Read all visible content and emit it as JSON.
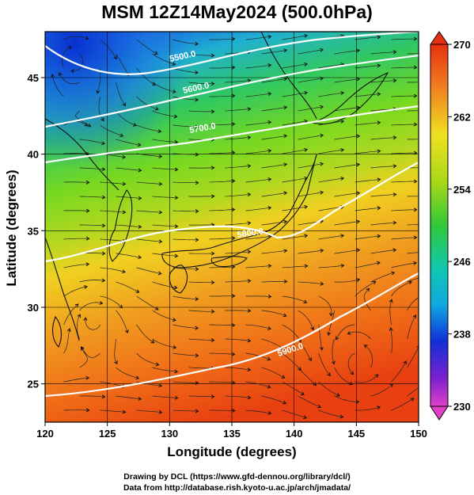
{
  "title": "MSM 12Z14May2024 (500.0hPa)",
  "map": {
    "xlabel": "Longitude (degrees)",
    "ylabel": "Latitude  (degrees)",
    "lon_range": [
      120,
      150
    ],
    "lat_range": [
      22.5,
      48
    ],
    "lon_ticks": [
      "120",
      "125",
      "130",
      "135",
      "140",
      "145",
      "150"
    ],
    "lat_ticks": [
      "25",
      "30",
      "35",
      "40",
      "45"
    ],
    "grid": true,
    "field": "temperature",
    "overlay": "streamlines"
  },
  "colorbar": {
    "ticks": [
      "270",
      "262",
      "254",
      "246",
      "238",
      "230"
    ],
    "min": 230,
    "max": 270,
    "colors": [
      "#e040c8",
      "#7a20d0",
      "#1030d8",
      "#10a8e0",
      "#20c880",
      "#30c838",
      "#a8d818",
      "#f0e020",
      "#f08020",
      "#e83010"
    ]
  },
  "contours": [
    {
      "label": "5500.0",
      "lat": 46
    },
    {
      "label": "5600.0",
      "lat": 44
    },
    {
      "label": "5700.0",
      "lat": 41
    },
    {
      "label": "5800.0",
      "lat": 35
    },
    {
      "label": "5900.0",
      "lat": 30
    }
  ],
  "credits": {
    "line1": "Drawing by DCL (https://www.gfd-dennou.org/library/dcl/)",
    "line2": "Data from http://database.rish.kyoto-u.ac.jp/arch/jmadata/"
  }
}
